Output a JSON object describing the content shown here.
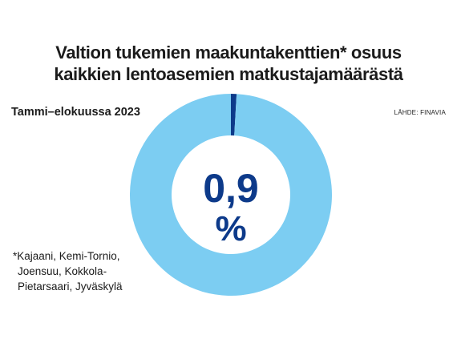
{
  "title_lines": [
    "Valtion tukemien maakuntakenttien* osuus",
    "kaikkien lentoasemien matkustajamäärästä"
  ],
  "subtitle": "Tammi–elokuussa 2023",
  "source": "LÄHDE: FINAVIA",
  "center_label": {
    "value": "0,9",
    "unit": "%"
  },
  "footnote_lines": [
    "*Kajaani, Kemi-Tornio,",
    "Joensuu, Kokkola-",
    "Pietarsaari, Jyväskylä"
  ],
  "colors": {
    "highlight": "#0d3a8a",
    "rest": "#7ccdf2",
    "label": "#0d3a8a"
  },
  "chart_data": {
    "type": "pie",
    "variant": "donut",
    "title": "Valtion tukemien maakuntakenttien* osuus kaikkien lentoasemien matkustajamäärästä",
    "subtitle": "Tammi–elokuussa 2023",
    "labels": [
      "",
      ""
    ],
    "values": [
      0.9,
      99.1
    ],
    "unit": "%",
    "start": "top",
    "direction": "clockwise"
  }
}
